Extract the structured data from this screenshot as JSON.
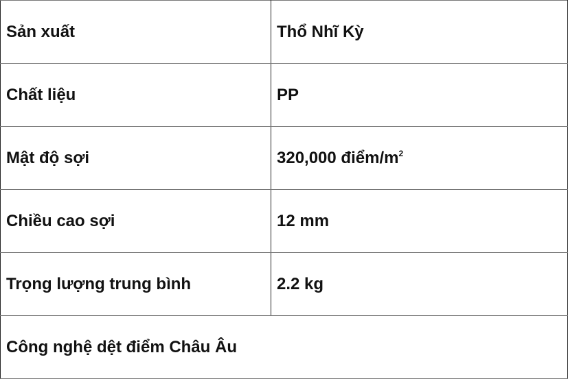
{
  "rows": [
    {
      "label": "Sản xuất",
      "value": "Thổ Nhĩ Kỳ"
    },
    {
      "label": "Chất liệu",
      "value": "PP"
    },
    {
      "label": "Mật độ sợi",
      "value": "320,000 điểm/m",
      "value_sup": "2"
    },
    {
      "label": "Chiều cao sợi",
      "value": "12 mm"
    },
    {
      "label": "Trọng lượng trung bình",
      "value": "2.2 kg"
    }
  ],
  "footer": "Công nghệ dệt điểm Châu Âu"
}
